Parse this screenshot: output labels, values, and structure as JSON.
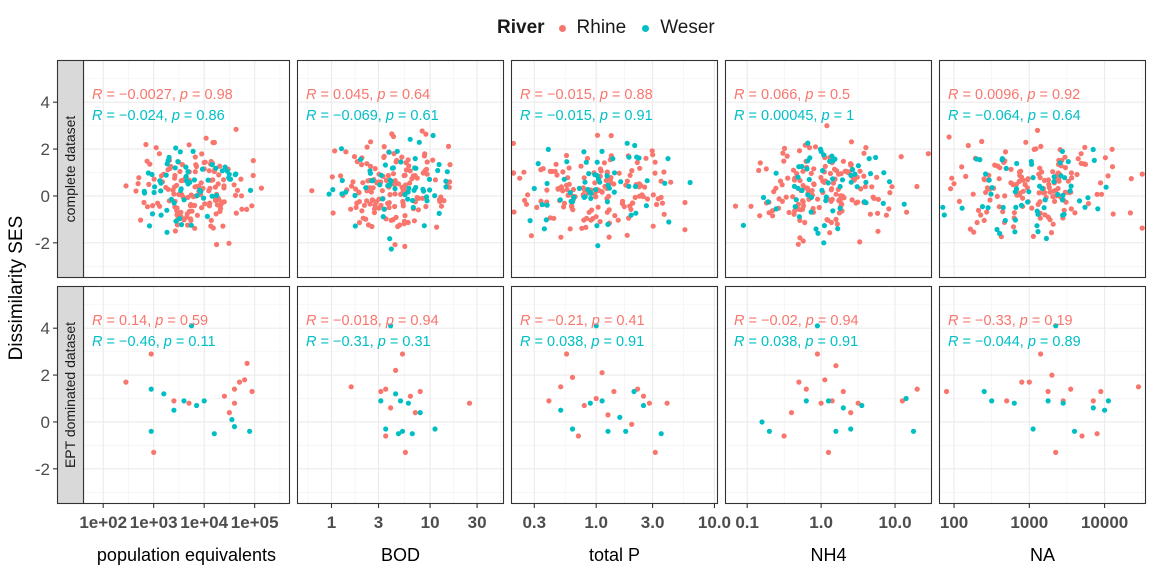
{
  "legend": {
    "title": "River",
    "items": [
      {
        "label": "Rhine",
        "color": "#F8766D"
      },
      {
        "label": "Weser",
        "color": "#00BFC4"
      }
    ]
  },
  "ylabel": "Dissimilarity SES",
  "chart_data": {
    "type": "scatter",
    "facet_rows": [
      "complete dataset",
      "EPT dominated dataset"
    ],
    "ylim": [
      -3.5,
      5.8
    ],
    "yticks": [
      -2,
      0,
      2,
      4
    ],
    "ytick_labels": [
      "-2",
      "0",
      "2",
      "4"
    ],
    "grid": true,
    "series_colors": {
      "Rhine": "#F8766D",
      "Weser": "#00BFC4"
    },
    "panels": [
      {
        "xlabel": "population equivalents",
        "xscale": "log",
        "xlim": [
          1.6,
          5.7
        ],
        "xticks": [
          2,
          3,
          4,
          5
        ],
        "xtick_labels": [
          "1e+02",
          "1e+03",
          "1e+04",
          "1e+05"
        ],
        "stats": [
          [
            {
              "river": "Rhine",
              "R": "−0.0027",
              "p": "0.98"
            },
            {
              "river": "Weser",
              "R": "−0.024",
              "p": "0.86"
            }
          ],
          [
            {
              "river": "Rhine",
              "R": "0.14",
              "p": "0.59"
            },
            {
              "river": "Weser",
              "R": "−0.46",
              "p": "0.11"
            }
          ]
        ],
        "ept": {
          "Rhine": [
            [
              2.45,
              1.7
            ],
            [
              2.95,
              2.9
            ],
            [
              3.0,
              -1.3
            ],
            [
              3.4,
              0.9
            ],
            [
              3.7,
              0.8
            ],
            [
              4.4,
              1.1
            ],
            [
              4.5,
              0.4
            ],
            [
              4.6,
              0.8
            ],
            [
              4.7,
              1.7
            ],
            [
              4.8,
              1.8
            ],
            [
              4.85,
              2.5
            ],
            [
              4.95,
              1.3
            ],
            [
              4.6,
              1.4
            ]
          ],
          "Weser": [
            [
              2.95,
              1.4
            ],
            [
              2.95,
              -0.4
            ],
            [
              3.2,
              1.2
            ],
            [
              3.4,
              0.5
            ],
            [
              3.6,
              0.9
            ],
            [
              3.75,
              4.1
            ],
            [
              3.85,
              0.7
            ],
            [
              4.0,
              0.9
            ],
            [
              4.2,
              -0.5
            ],
            [
              4.55,
              0.1
            ],
            [
              4.6,
              -0.2
            ],
            [
              4.9,
              -0.4
            ]
          ]
        }
      },
      {
        "xlabel": "BOD",
        "xscale": "log",
        "xlim": [
          -0.35,
          1.75
        ],
        "xticks": [
          0,
          0.477,
          1,
          1.477
        ],
        "xtick_labels": [
          "1",
          "3",
          "10",
          "30"
        ],
        "stats": [
          [
            {
              "river": "Rhine",
              "R": "0.045",
              "p": "0.64"
            },
            {
              "river": "Weser",
              "R": "−0.069",
              "p": "0.61"
            }
          ],
          [
            {
              "river": "Rhine",
              "R": "−0.018",
              "p": "0.94"
            },
            {
              "river": "Weser",
              "R": "−0.31",
              "p": "0.31"
            }
          ]
        ],
        "ept": {
          "Rhine": [
            [
              0.2,
              1.5
            ],
            [
              0.5,
              1.3
            ],
            [
              0.55,
              1.4
            ],
            [
              0.6,
              0.6
            ],
            [
              0.65,
              2.2
            ],
            [
              0.72,
              2.9
            ],
            [
              0.75,
              -1.3
            ],
            [
              0.8,
              1.1
            ],
            [
              0.85,
              0.4
            ],
            [
              0.9,
              1.3
            ],
            [
              1.4,
              0.8
            ],
            [
              0.55,
              -0.6
            ]
          ],
          "Weser": [
            [
              0.5,
              0.9
            ],
            [
              0.55,
              -0.3
            ],
            [
              0.6,
              4.1
            ],
            [
              0.65,
              1.2
            ],
            [
              0.7,
              0.9
            ],
            [
              0.72,
              -0.4
            ],
            [
              0.78,
              0.8
            ],
            [
              0.82,
              -0.5
            ],
            [
              0.9,
              0.4
            ],
            [
              1.05,
              -0.3
            ],
            [
              0.68,
              -0.5
            ]
          ]
        }
      },
      {
        "xlabel": "total P",
        "xscale": "log",
        "xlim": [
          -0.72,
          1.03
        ],
        "xticks": [
          -0.523,
          0,
          0.477,
          1
        ],
        "xtick_labels": [
          "0.3",
          "1.0",
          "3.0",
          "10.0"
        ],
        "stats": [
          [
            {
              "river": "Rhine",
              "R": "−0.015",
              "p": "0.88"
            },
            {
              "river": "Weser",
              "R": "−0.015",
              "p": "0.91"
            }
          ],
          [
            {
              "river": "Rhine",
              "R": "−0.21",
              "p": "0.41"
            },
            {
              "river": "Weser",
              "R": "0.038",
              "p": "0.91"
            }
          ]
        ],
        "ept": {
          "Rhine": [
            [
              -0.4,
              0.9
            ],
            [
              -0.3,
              1.5
            ],
            [
              -0.25,
              2.9
            ],
            [
              -0.2,
              1.9
            ],
            [
              -0.15,
              -0.6
            ],
            [
              -0.1,
              0.7
            ],
            [
              0.0,
              1.0
            ],
            [
              0.05,
              2.1
            ],
            [
              0.1,
              0.3
            ],
            [
              0.15,
              1.3
            ],
            [
              0.3,
              -0.1
            ],
            [
              0.35,
              1.4
            ],
            [
              0.4,
              1.1
            ],
            [
              0.45,
              0.8
            ],
            [
              0.5,
              -1.3
            ],
            [
              0.6,
              0.8
            ]
          ],
          "Weser": [
            [
              -0.3,
              0.5
            ],
            [
              -0.2,
              -0.3
            ],
            [
              -0.05,
              0.8
            ],
            [
              0.0,
              4.1
            ],
            [
              0.05,
              0.9
            ],
            [
              0.1,
              -0.4
            ],
            [
              0.2,
              0.2
            ],
            [
              0.25,
              -0.4
            ],
            [
              0.32,
              1.3
            ],
            [
              0.4,
              0.7
            ],
            [
              0.55,
              -0.5
            ]
          ]
        }
      },
      {
        "xlabel": "NH4",
        "xscale": "log",
        "xlim": [
          -1.3,
          1.5
        ],
        "xticks": [
          -1,
          0,
          1
        ],
        "xtick_labels": [
          "0.1",
          "1.0",
          "10.0"
        ],
        "stats": [
          [
            {
              "river": "Rhine",
              "R": "0.066",
              "p": "0.5"
            },
            {
              "river": "Weser",
              "R": "0.00045",
              "p": "1"
            }
          ],
          [
            {
              "river": "Rhine",
              "R": "−0.02",
              "p": "0.94"
            },
            {
              "river": "Weser",
              "R": "0.038",
              "p": "0.91"
            }
          ]
        ],
        "ept": {
          "Rhine": [
            [
              -0.5,
              -0.6
            ],
            [
              -0.4,
              0.4
            ],
            [
              -0.3,
              1.7
            ],
            [
              -0.2,
              1.4
            ],
            [
              -0.05,
              2.9
            ],
            [
              0.0,
              0.8
            ],
            [
              0.05,
              1.8
            ],
            [
              0.1,
              -1.3
            ],
            [
              0.15,
              0.9
            ],
            [
              0.2,
              2.4
            ],
            [
              0.3,
              1.3
            ],
            [
              0.4,
              0.4
            ],
            [
              0.5,
              0.8
            ],
            [
              1.1,
              0.9
            ],
            [
              1.3,
              1.4
            ]
          ],
          "Weser": [
            [
              -0.8,
              0.0
            ],
            [
              -0.7,
              -0.4
            ],
            [
              -0.2,
              0.9
            ],
            [
              -0.05,
              4.1
            ],
            [
              0.1,
              0.9
            ],
            [
              0.2,
              -0.4
            ],
            [
              0.3,
              0.6
            ],
            [
              0.4,
              -0.3
            ],
            [
              0.55,
              0.7
            ],
            [
              1.15,
              1.0
            ],
            [
              1.25,
              -0.4
            ]
          ]
        }
      },
      {
        "xlabel": "NA",
        "xscale": "log",
        "xlim": [
          1.8,
          4.55
        ],
        "xticks": [
          2,
          3,
          4
        ],
        "xtick_labels": [
          "100",
          "1000",
          "10000"
        ],
        "stats": [
          [
            {
              "river": "Rhine",
              "R": "0.0096",
              "p": "0.92"
            },
            {
              "river": "Weser",
              "R": "−0.064",
              "p": "0.64"
            }
          ],
          [
            {
              "river": "Rhine",
              "R": "−0.33",
              "p": "0.19"
            },
            {
              "river": "Weser",
              "R": "−0.044",
              "p": "0.89"
            }
          ]
        ],
        "ept": {
          "Rhine": [
            [
              1.9,
              1.3
            ],
            [
              2.7,
              0.9
            ],
            [
              2.9,
              1.7
            ],
            [
              3.0,
              1.7
            ],
            [
              3.15,
              2.9
            ],
            [
              3.25,
              1.3
            ],
            [
              3.3,
              2.0
            ],
            [
              3.35,
              -1.3
            ],
            [
              3.45,
              0.9
            ],
            [
              3.55,
              1.4
            ],
            [
              3.7,
              -0.6
            ],
            [
              3.85,
              0.9
            ],
            [
              3.9,
              -0.5
            ],
            [
              3.95,
              1.3
            ],
            [
              4.45,
              1.5
            ]
          ],
          "Weser": [
            [
              2.4,
              1.3
            ],
            [
              2.5,
              0.9
            ],
            [
              2.8,
              0.8
            ],
            [
              3.05,
              -0.3
            ],
            [
              3.25,
              0.9
            ],
            [
              3.35,
              4.1
            ],
            [
              3.45,
              0.8
            ],
            [
              3.6,
              -0.4
            ],
            [
              3.85,
              0.6
            ],
            [
              4.0,
              0.5
            ],
            [
              4.05,
              0.9
            ]
          ]
        }
      }
    ]
  }
}
